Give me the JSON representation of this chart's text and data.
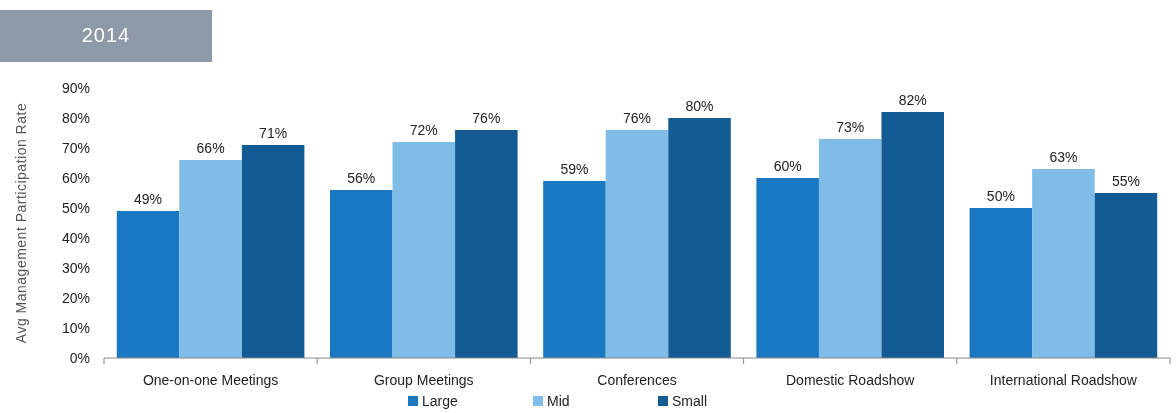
{
  "chart_data": {
    "type": "bar",
    "title": "2014",
    "ylabel": "Avg Management Participation Rate",
    "categories": [
      "One-on-one Meetings",
      "Group Meetings",
      "Conferences",
      "Domestic Roadshow",
      "International Roadshow"
    ],
    "series": [
      {
        "name": "Large",
        "color": "#1a78c2",
        "values": [
          49,
          56,
          59,
          60,
          50
        ],
        "value_labels": [
          "49%",
          "56%",
          "59%",
          "60%",
          "50%"
        ]
      },
      {
        "name": "Mid",
        "color": "#7fbde8",
        "values": [
          66,
          72,
          76,
          73,
          63
        ],
        "value_labels": [
          "66%",
          "72%",
          "76%",
          "73%",
          "63%"
        ]
      },
      {
        "name": "Small",
        "color": "#135b92",
        "values": [
          71,
          76,
          80,
          82,
          55
        ],
        "value_labels": [
          "71%",
          "76%",
          "80%",
          "82%",
          "55%"
        ]
      }
    ],
    "ylim": [
      0,
      90
    ],
    "yticks": [
      {
        "value": 0,
        "label": "0%"
      },
      {
        "value": 10,
        "label": "10%"
      },
      {
        "value": 20,
        "label": "20%"
      },
      {
        "value": 30,
        "label": "30%"
      },
      {
        "value": 40,
        "label": "40%"
      },
      {
        "value": 50,
        "label": "50%"
      },
      {
        "value": 60,
        "label": "60%"
      },
      {
        "value": 70,
        "label": "70%"
      },
      {
        "value": 80,
        "label": "80%"
      },
      {
        "value": 90,
        "label": "90%"
      }
    ],
    "grid": false,
    "legend": "bottom"
  }
}
